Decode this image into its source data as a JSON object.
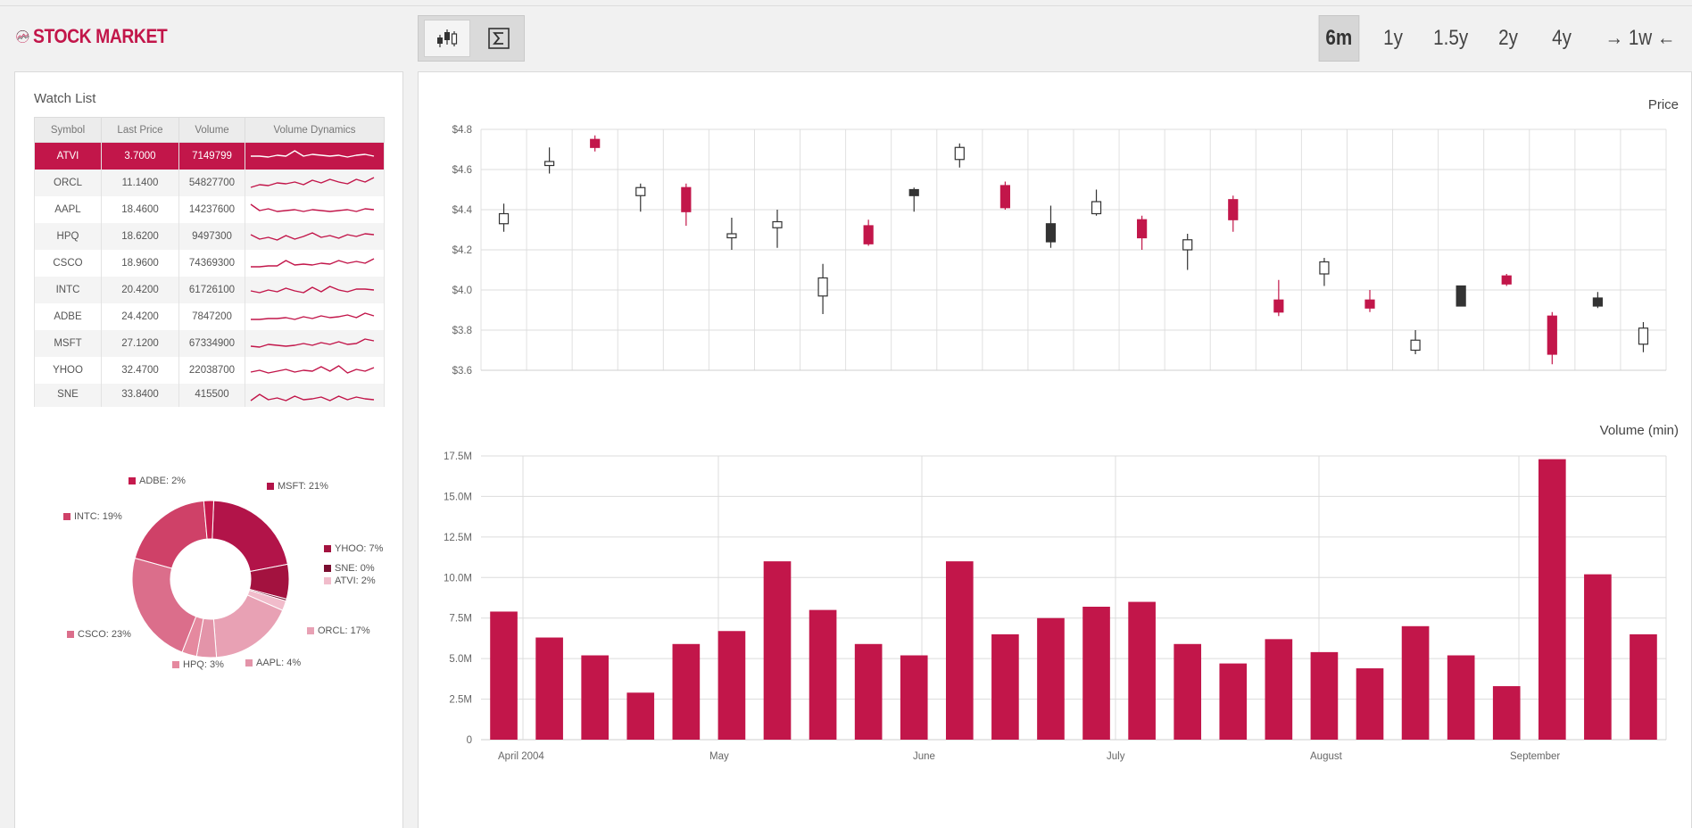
{
  "app": {
    "title": "STOCK MARKET",
    "colors": {
      "accent": "#c2164a",
      "dark": "#333333",
      "panel": "#ffffff"
    }
  },
  "toolbar": {
    "buttons": [
      {
        "icon": "candlestick-icon",
        "active": true
      },
      {
        "icon": "sigma-icon",
        "active": false
      }
    ]
  },
  "ranges": [
    {
      "label": "6m",
      "active": true
    },
    {
      "label": "1y",
      "active": false
    },
    {
      "label": "1.5y",
      "active": false
    },
    {
      "label": "2y",
      "active": false
    },
    {
      "label": "4y",
      "active": false
    },
    {
      "label": "→ 1w ←",
      "active": false
    }
  ],
  "watchlist": {
    "title": "Watch List",
    "columns": [
      "Symbol",
      "Last Price",
      "Volume",
      "Volume Dynamics"
    ],
    "rows": [
      {
        "symbol": "ATVI",
        "price": "3.7000",
        "volume": "7149799",
        "selected": true
      },
      {
        "symbol": "ORCL",
        "price": "11.1400",
        "volume": "54827700"
      },
      {
        "symbol": "AAPL",
        "price": "18.4600",
        "volume": "14237600"
      },
      {
        "symbol": "HPQ",
        "price": "18.6200",
        "volume": "9497300"
      },
      {
        "symbol": "CSCO",
        "price": "18.9600",
        "volume": "74369300"
      },
      {
        "symbol": "INTC",
        "price": "20.4200",
        "volume": "61726100"
      },
      {
        "symbol": "ADBE",
        "price": "24.4200",
        "volume": "7847200"
      },
      {
        "symbol": "MSFT",
        "price": "27.1200",
        "volume": "67334900"
      },
      {
        "symbol": "YHOO",
        "price": "32.4700",
        "volume": "22038700"
      },
      {
        "symbol": "SNE",
        "price": "33.8400",
        "volume": "415500"
      }
    ]
  },
  "chart_data": [
    {
      "type": "pie",
      "hole": true,
      "slices": [
        {
          "label": "MSFT: 21%",
          "name": "MSFT",
          "value": 21,
          "color": "#b21449"
        },
        {
          "label": "YHOO: 7%",
          "name": "YHOO",
          "value": 7,
          "color": "#a3123f"
        },
        {
          "label": "SNE: 0%",
          "name": "SNE",
          "value": 0,
          "color": "#7a0e30"
        },
        {
          "label": "ATVI: 2%",
          "name": "ATVI",
          "value": 2,
          "color": "#f1bccb"
        },
        {
          "label": "ORCL: 17%",
          "name": "ORCL",
          "value": 17,
          "color": "#e8a1b4"
        },
        {
          "label": "AAPL: 4%",
          "name": "AAPL",
          "value": 4,
          "color": "#e394a9"
        },
        {
          "label": "HPQ: 3%",
          "name": "HPQ",
          "value": 3,
          "color": "#e5899f"
        },
        {
          "label": "CSCO: 23%",
          "name": "CSCO",
          "value": 23,
          "color": "#db6e8b"
        },
        {
          "label": "INTC: 19%",
          "name": "INTC",
          "value": 19,
          "color": "#cf4168"
        },
        {
          "label": "ADBE: 2%",
          "name": "ADBE",
          "value": 2,
          "color": "#c51a4d"
        }
      ]
    },
    {
      "type": "candlestick",
      "title": "Price",
      "ylim": [
        3.6,
        4.8
      ],
      "yticks": [
        "$3.6",
        "$3.8",
        "$4.0",
        "$4.2",
        "$4.4",
        "$4.6",
        "$4.8"
      ],
      "candles": [
        {
          "open": 4.33,
          "close": 4.38,
          "high": 4.43,
          "low": 4.29
        },
        {
          "open": 4.62,
          "close": 4.64,
          "high": 4.71,
          "low": 4.58
        },
        {
          "open": 4.75,
          "close": 4.71,
          "high": 4.77,
          "low": 4.69
        },
        {
          "open": 4.47,
          "close": 4.51,
          "high": 4.53,
          "low": 4.39
        },
        {
          "open": 4.51,
          "close": 4.39,
          "high": 4.53,
          "low": 4.32
        },
        {
          "open": 4.26,
          "close": 4.28,
          "high": 4.36,
          "low": 4.2
        },
        {
          "open": 4.31,
          "close": 4.34,
          "high": 4.4,
          "low": 4.21
        },
        {
          "open": 3.97,
          "close": 4.06,
          "high": 4.13,
          "low": 3.88
        },
        {
          "open": 4.32,
          "close": 4.23,
          "high": 4.35,
          "low": 4.22
        },
        {
          "open": 4.5,
          "close": 4.47,
          "high": 4.51,
          "low": 4.39
        },
        {
          "open": 4.65,
          "close": 4.71,
          "high": 4.73,
          "low": 4.61
        },
        {
          "open": 4.52,
          "close": 4.41,
          "high": 4.54,
          "low": 4.4
        },
        {
          "open": 4.33,
          "close": 4.24,
          "high": 4.42,
          "low": 4.21
        },
        {
          "open": 4.38,
          "close": 4.44,
          "high": 4.5,
          "low": 4.37
        },
        {
          "open": 4.35,
          "close": 4.26,
          "high": 4.37,
          "low": 4.2
        },
        {
          "open": 4.2,
          "close": 4.25,
          "high": 4.28,
          "low": 4.1
        },
        {
          "open": 4.45,
          "close": 4.35,
          "high": 4.47,
          "low": 4.29
        },
        {
          "open": 3.95,
          "close": 3.89,
          "high": 4.05,
          "low": 3.87
        },
        {
          "open": 4.08,
          "close": 4.14,
          "high": 4.16,
          "low": 4.02
        },
        {
          "open": 3.95,
          "close": 3.91,
          "high": 4.0,
          "low": 3.89
        },
        {
          "open": 3.7,
          "close": 3.75,
          "high": 3.8,
          "low": 3.68
        },
        {
          "open": 4.02,
          "close": 3.92,
          "high": 4.02,
          "low": 3.92
        },
        {
          "open": 4.07,
          "close": 4.03,
          "high": 4.08,
          "low": 4.02
        },
        {
          "open": 3.87,
          "close": 3.68,
          "high": 3.89,
          "low": 3.63
        },
        {
          "open": 3.96,
          "close": 3.92,
          "high": 3.99,
          "low": 3.91
        },
        {
          "open": 3.73,
          "close": 3.81,
          "high": 3.84,
          "low": 3.69
        }
      ]
    },
    {
      "type": "bar",
      "title": "Volume (min)",
      "ylim": [
        0,
        17500000
      ],
      "yticks": [
        "0",
        "2.5M",
        "5.0M",
        "7.5M",
        "10.0M",
        "12.5M",
        "15.0M",
        "17.5M"
      ],
      "xticks": [
        "April 2004",
        "May",
        "June",
        "July",
        "August",
        "September"
      ],
      "values": [
        7.9,
        6.3,
        5.2,
        2.9,
        5.9,
        6.7,
        11.0,
        8.0,
        5.9,
        5.2,
        11.0,
        6.5,
        7.5,
        8.2,
        8.5,
        5.9,
        4.7,
        6.2,
        5.4,
        4.4,
        7.0,
        5.2,
        3.3,
        17.3,
        10.2,
        6.5
      ],
      "value_unit": "M"
    }
  ]
}
